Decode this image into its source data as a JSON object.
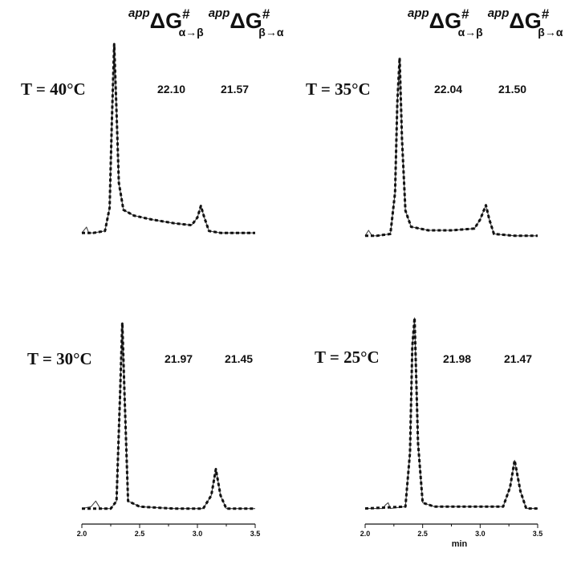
{
  "header": {
    "left": {
      "prefix1": "app",
      "symbol1": "ΔG",
      "sup1": "#",
      "sub1": "α→β",
      "prefix2": "app",
      "symbol2": "ΔG",
      "sup2": "#",
      "sub2": "β→α"
    },
    "right": {
      "prefix1": "app",
      "symbol1": "ΔG",
      "sup1": "#",
      "sub1": "α→β",
      "prefix2": "app",
      "symbol2": "ΔG",
      "sup2": "#",
      "sub2": "β→α"
    }
  },
  "chart_data": [
    {
      "type": "line",
      "title": "T = 40°C",
      "annotations": [
        "22.10",
        "21.57"
      ],
      "xlim": [
        2.0,
        3.5
      ],
      "xlabel": "",
      "series": [
        {
          "style": "solid",
          "points": [
            [
              2.0,
              0.02
            ],
            [
              2.04,
              0.05
            ],
            [
              2.06,
              0.02
            ],
            [
              2.1,
              0.02
            ],
            [
              2.2,
              0.03
            ],
            [
              2.24,
              0.15
            ],
            [
              2.26,
              0.6
            ],
            [
              2.28,
              1.0
            ],
            [
              2.3,
              0.65
            ],
            [
              2.32,
              0.28
            ],
            [
              2.36,
              0.14
            ],
            [
              2.45,
              0.11
            ],
            [
              2.6,
              0.09
            ],
            [
              2.8,
              0.07
            ],
            [
              2.95,
              0.06
            ],
            [
              3.0,
              0.1
            ],
            [
              3.03,
              0.16
            ],
            [
              3.06,
              0.1
            ],
            [
              3.1,
              0.03
            ],
            [
              3.2,
              0.02
            ],
            [
              3.35,
              0.02
            ],
            [
              3.5,
              0.02
            ]
          ]
        },
        {
          "style": "dashed",
          "points": [
            [
              2.0,
              0.02
            ],
            [
              2.1,
              0.02
            ],
            [
              2.2,
              0.03
            ],
            [
              2.24,
              0.15
            ],
            [
              2.26,
              0.6
            ],
            [
              2.28,
              1.0
            ],
            [
              2.3,
              0.65
            ],
            [
              2.32,
              0.28
            ],
            [
              2.36,
              0.14
            ],
            [
              2.45,
              0.11
            ],
            [
              2.6,
              0.09
            ],
            [
              2.8,
              0.07
            ],
            [
              2.95,
              0.06
            ],
            [
              3.0,
              0.1
            ],
            [
              3.03,
              0.16
            ],
            [
              3.06,
              0.1
            ],
            [
              3.1,
              0.03
            ],
            [
              3.2,
              0.02
            ],
            [
              3.35,
              0.02
            ],
            [
              3.5,
              0.02
            ]
          ]
        }
      ]
    },
    {
      "type": "line",
      "title": "T = 35°C",
      "annotations": [
        "22.04",
        "21.50"
      ],
      "xlim": [
        2.0,
        3.5
      ],
      "xlabel": "",
      "series": [
        {
          "style": "solid",
          "points": [
            [
              2.0,
              0.01
            ],
            [
              2.03,
              0.04
            ],
            [
              2.06,
              0.01
            ],
            [
              2.1,
              0.01
            ],
            [
              2.22,
              0.02
            ],
            [
              2.26,
              0.25
            ],
            [
              2.28,
              0.75
            ],
            [
              2.3,
              1.0
            ],
            [
              2.32,
              0.55
            ],
            [
              2.35,
              0.15
            ],
            [
              2.4,
              0.06
            ],
            [
              2.55,
              0.04
            ],
            [
              2.75,
              0.04
            ],
            [
              2.95,
              0.05
            ],
            [
              3.0,
              0.1
            ],
            [
              3.05,
              0.18
            ],
            [
              3.08,
              0.1
            ],
            [
              3.12,
              0.02
            ],
            [
              3.3,
              0.01
            ],
            [
              3.5,
              0.01
            ]
          ]
        },
        {
          "style": "dashed",
          "points": [
            [
              2.0,
              0.01
            ],
            [
              2.1,
              0.01
            ],
            [
              2.22,
              0.02
            ],
            [
              2.26,
              0.25
            ],
            [
              2.28,
              0.75
            ],
            [
              2.3,
              1.0
            ],
            [
              2.32,
              0.55
            ],
            [
              2.35,
              0.15
            ],
            [
              2.4,
              0.06
            ],
            [
              2.55,
              0.04
            ],
            [
              2.75,
              0.04
            ],
            [
              2.95,
              0.05
            ],
            [
              3.0,
              0.1
            ],
            [
              3.05,
              0.18
            ],
            [
              3.08,
              0.1
            ],
            [
              3.12,
              0.02
            ],
            [
              3.3,
              0.01
            ],
            [
              3.5,
              0.01
            ]
          ]
        }
      ]
    },
    {
      "type": "line",
      "title": "T = 30°C",
      "annotations": [
        "21.97",
        "21.45"
      ],
      "xlim": [
        2.0,
        3.5
      ],
      "xlabel": "",
      "ticks": [
        "2.0",
        "2.5",
        "3.0",
        "3.5"
      ],
      "series": [
        {
          "style": "solid",
          "points": [
            [
              2.0,
              0.01
            ],
            [
              2.08,
              0.02
            ],
            [
              2.12,
              0.05
            ],
            [
              2.16,
              0.01
            ],
            [
              2.25,
              0.01
            ],
            [
              2.3,
              0.05
            ],
            [
              2.33,
              0.6
            ],
            [
              2.35,
              1.0
            ],
            [
              2.37,
              0.6
            ],
            [
              2.4,
              0.05
            ],
            [
              2.5,
              0.02
            ],
            [
              2.8,
              0.01
            ],
            [
              3.05,
              0.01
            ],
            [
              3.12,
              0.08
            ],
            [
              3.16,
              0.22
            ],
            [
              3.2,
              0.08
            ],
            [
              3.25,
              0.01
            ],
            [
              3.5,
              0.01
            ]
          ]
        },
        {
          "style": "dashed",
          "points": [
            [
              2.0,
              0.01
            ],
            [
              2.25,
              0.01
            ],
            [
              2.3,
              0.05
            ],
            [
              2.33,
              0.6
            ],
            [
              2.35,
              1.0
            ],
            [
              2.37,
              0.6
            ],
            [
              2.4,
              0.05
            ],
            [
              2.5,
              0.02
            ],
            [
              2.8,
              0.01
            ],
            [
              3.05,
              0.01
            ],
            [
              3.12,
              0.08
            ],
            [
              3.16,
              0.22
            ],
            [
              3.2,
              0.08
            ],
            [
              3.25,
              0.01
            ],
            [
              3.5,
              0.01
            ]
          ]
        }
      ]
    },
    {
      "type": "line",
      "title": "T = 25°C",
      "annotations": [
        "21.98",
        "21.47"
      ],
      "xlim": [
        2.0,
        3.5
      ],
      "xlabel": "min",
      "ticks": [
        "2.0",
        "2.5",
        "3.0",
        "3.5"
      ],
      "series": [
        {
          "style": "solid",
          "points": [
            [
              2.0,
              0.01
            ],
            [
              2.15,
              0.01
            ],
            [
              2.18,
              0.03
            ],
            [
              2.2,
              0.04
            ],
            [
              2.22,
              0.01
            ],
            [
              2.35,
              0.02
            ],
            [
              2.39,
              0.3
            ],
            [
              2.41,
              0.85
            ],
            [
              2.43,
              1.0
            ],
            [
              2.46,
              0.35
            ],
            [
              2.5,
              0.04
            ],
            [
              2.6,
              0.02
            ],
            [
              3.0,
              0.02
            ],
            [
              3.2,
              0.02
            ],
            [
              3.26,
              0.12
            ],
            [
              3.3,
              0.26
            ],
            [
              3.35,
              0.1
            ],
            [
              3.4,
              0.01
            ],
            [
              3.5,
              0.01
            ]
          ]
        },
        {
          "style": "dashed",
          "points": [
            [
              2.0,
              0.01
            ],
            [
              2.35,
              0.02
            ],
            [
              2.39,
              0.3
            ],
            [
              2.41,
              0.85
            ],
            [
              2.43,
              1.0
            ],
            [
              2.46,
              0.35
            ],
            [
              2.5,
              0.04
            ],
            [
              2.6,
              0.02
            ],
            [
              3.0,
              0.02
            ],
            [
              3.2,
              0.02
            ],
            [
              3.26,
              0.12
            ],
            [
              3.3,
              0.26
            ],
            [
              3.35,
              0.1
            ],
            [
              3.4,
              0.01
            ],
            [
              3.5,
              0.01
            ]
          ]
        }
      ]
    }
  ]
}
